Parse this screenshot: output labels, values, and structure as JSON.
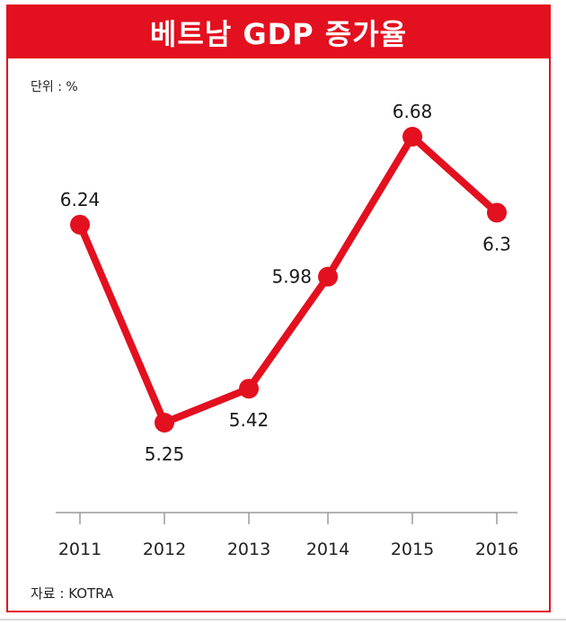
{
  "chart_data": {
    "type": "line",
    "title": "베트남 GDP 증가율",
    "unit_note": "단위 : %",
    "source_note": "자료 : KOTRA",
    "categories": [
      "2011",
      "2012",
      "2013",
      "2014",
      "2015",
      "2016"
    ],
    "series": [
      {
        "values": [
          6.24,
          5.25,
          5.42,
          5.98,
          6.68,
          6.3
        ]
      }
    ],
    "data_labels": [
      "6.24",
      "5.25",
      "5.42",
      "5.98",
      "6.68",
      "6.3"
    ],
    "label_positions": [
      "above",
      "below",
      "below",
      "left",
      "above",
      "below"
    ],
    "grid": false,
    "color": "#e3101f"
  }
}
